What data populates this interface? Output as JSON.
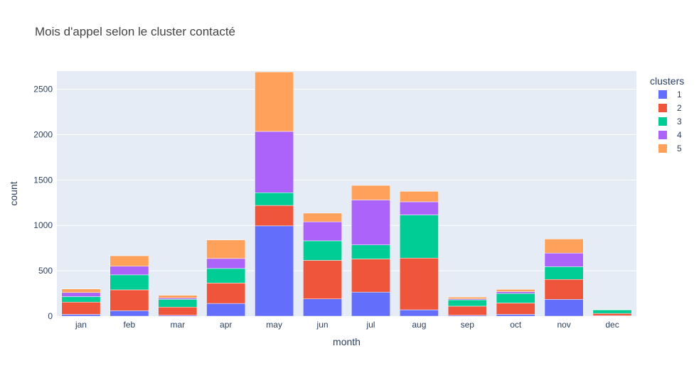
{
  "chart_data": {
    "type": "bar",
    "stacked": true,
    "title": "Mois d'appel selon le cluster contacté",
    "xlabel": "month",
    "ylabel": "count",
    "ylim": [
      0,
      2700
    ],
    "yticks": [
      0,
      500,
      1000,
      1500,
      2000,
      2500
    ],
    "grid": true,
    "legend_title": "clusters",
    "legend_position": "top-right",
    "categories": [
      "jan",
      "feb",
      "mar",
      "apr",
      "may",
      "jun",
      "jul",
      "aug",
      "sep",
      "oct",
      "nov",
      "dec"
    ],
    "series": [
      {
        "name": "1",
        "color": "#636efa",
        "values": [
          20,
          60,
          10,
          140,
          995,
          190,
          265,
          70,
          10,
          20,
          185,
          5
        ]
      },
      {
        "name": "2",
        "color": "#ef553b",
        "values": [
          135,
          230,
          90,
          225,
          225,
          425,
          365,
          570,
          100,
          125,
          220,
          25
        ]
      },
      {
        "name": "3",
        "color": "#00cc96",
        "values": [
          60,
          165,
          85,
          160,
          140,
          215,
          155,
          475,
          70,
          105,
          140,
          40
        ]
      },
      {
        "name": "4",
        "color": "#ab63fa",
        "values": [
          45,
          95,
          15,
          110,
          675,
          210,
          495,
          145,
          10,
          20,
          150,
          3
        ]
      },
      {
        "name": "5",
        "color": "#ffa15a",
        "values": [
          40,
          115,
          30,
          205,
          655,
          95,
          160,
          115,
          20,
          25,
          155,
          2
        ]
      }
    ]
  }
}
